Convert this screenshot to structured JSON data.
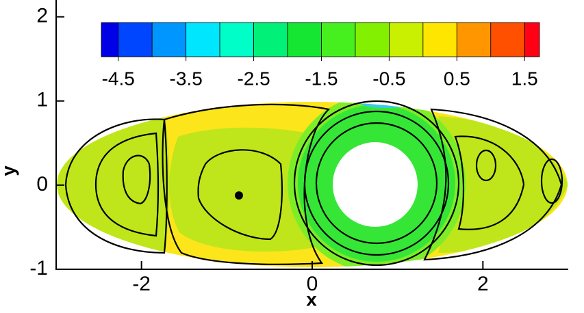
{
  "chart_data": {
    "type": "contour",
    "xlabel": "x",
    "ylabel": "y",
    "xlim": [
      -3,
      3
    ],
    "ylim": [
      -1,
      2.2
    ],
    "xticks": [
      -2,
      0,
      2
    ],
    "yticks": [
      -1,
      0,
      1,
      2
    ],
    "colorbar": {
      "lim": [
        -4.75,
        1.72
      ],
      "levels": [
        -4.5,
        -4,
        -3.5,
        -3,
        -2.5,
        -2,
        -1.5,
        -1,
        -0.5,
        0,
        0.5,
        1,
        1.5
      ],
      "ticks": [
        -4.5,
        -3.5,
        -2.5,
        -1.5,
        -0.5,
        0.5,
        1.5
      ],
      "colors": [
        "#0000e6",
        "#0046ff",
        "#0096ff",
        "#00e6ff",
        "#00ffc8",
        "#00f078",
        "#14e632",
        "#46f01e",
        "#82f000",
        "#c8f000",
        "#ffe600",
        "#ff9600",
        "#ff5000",
        "#ff0014"
      ]
    }
  }
}
